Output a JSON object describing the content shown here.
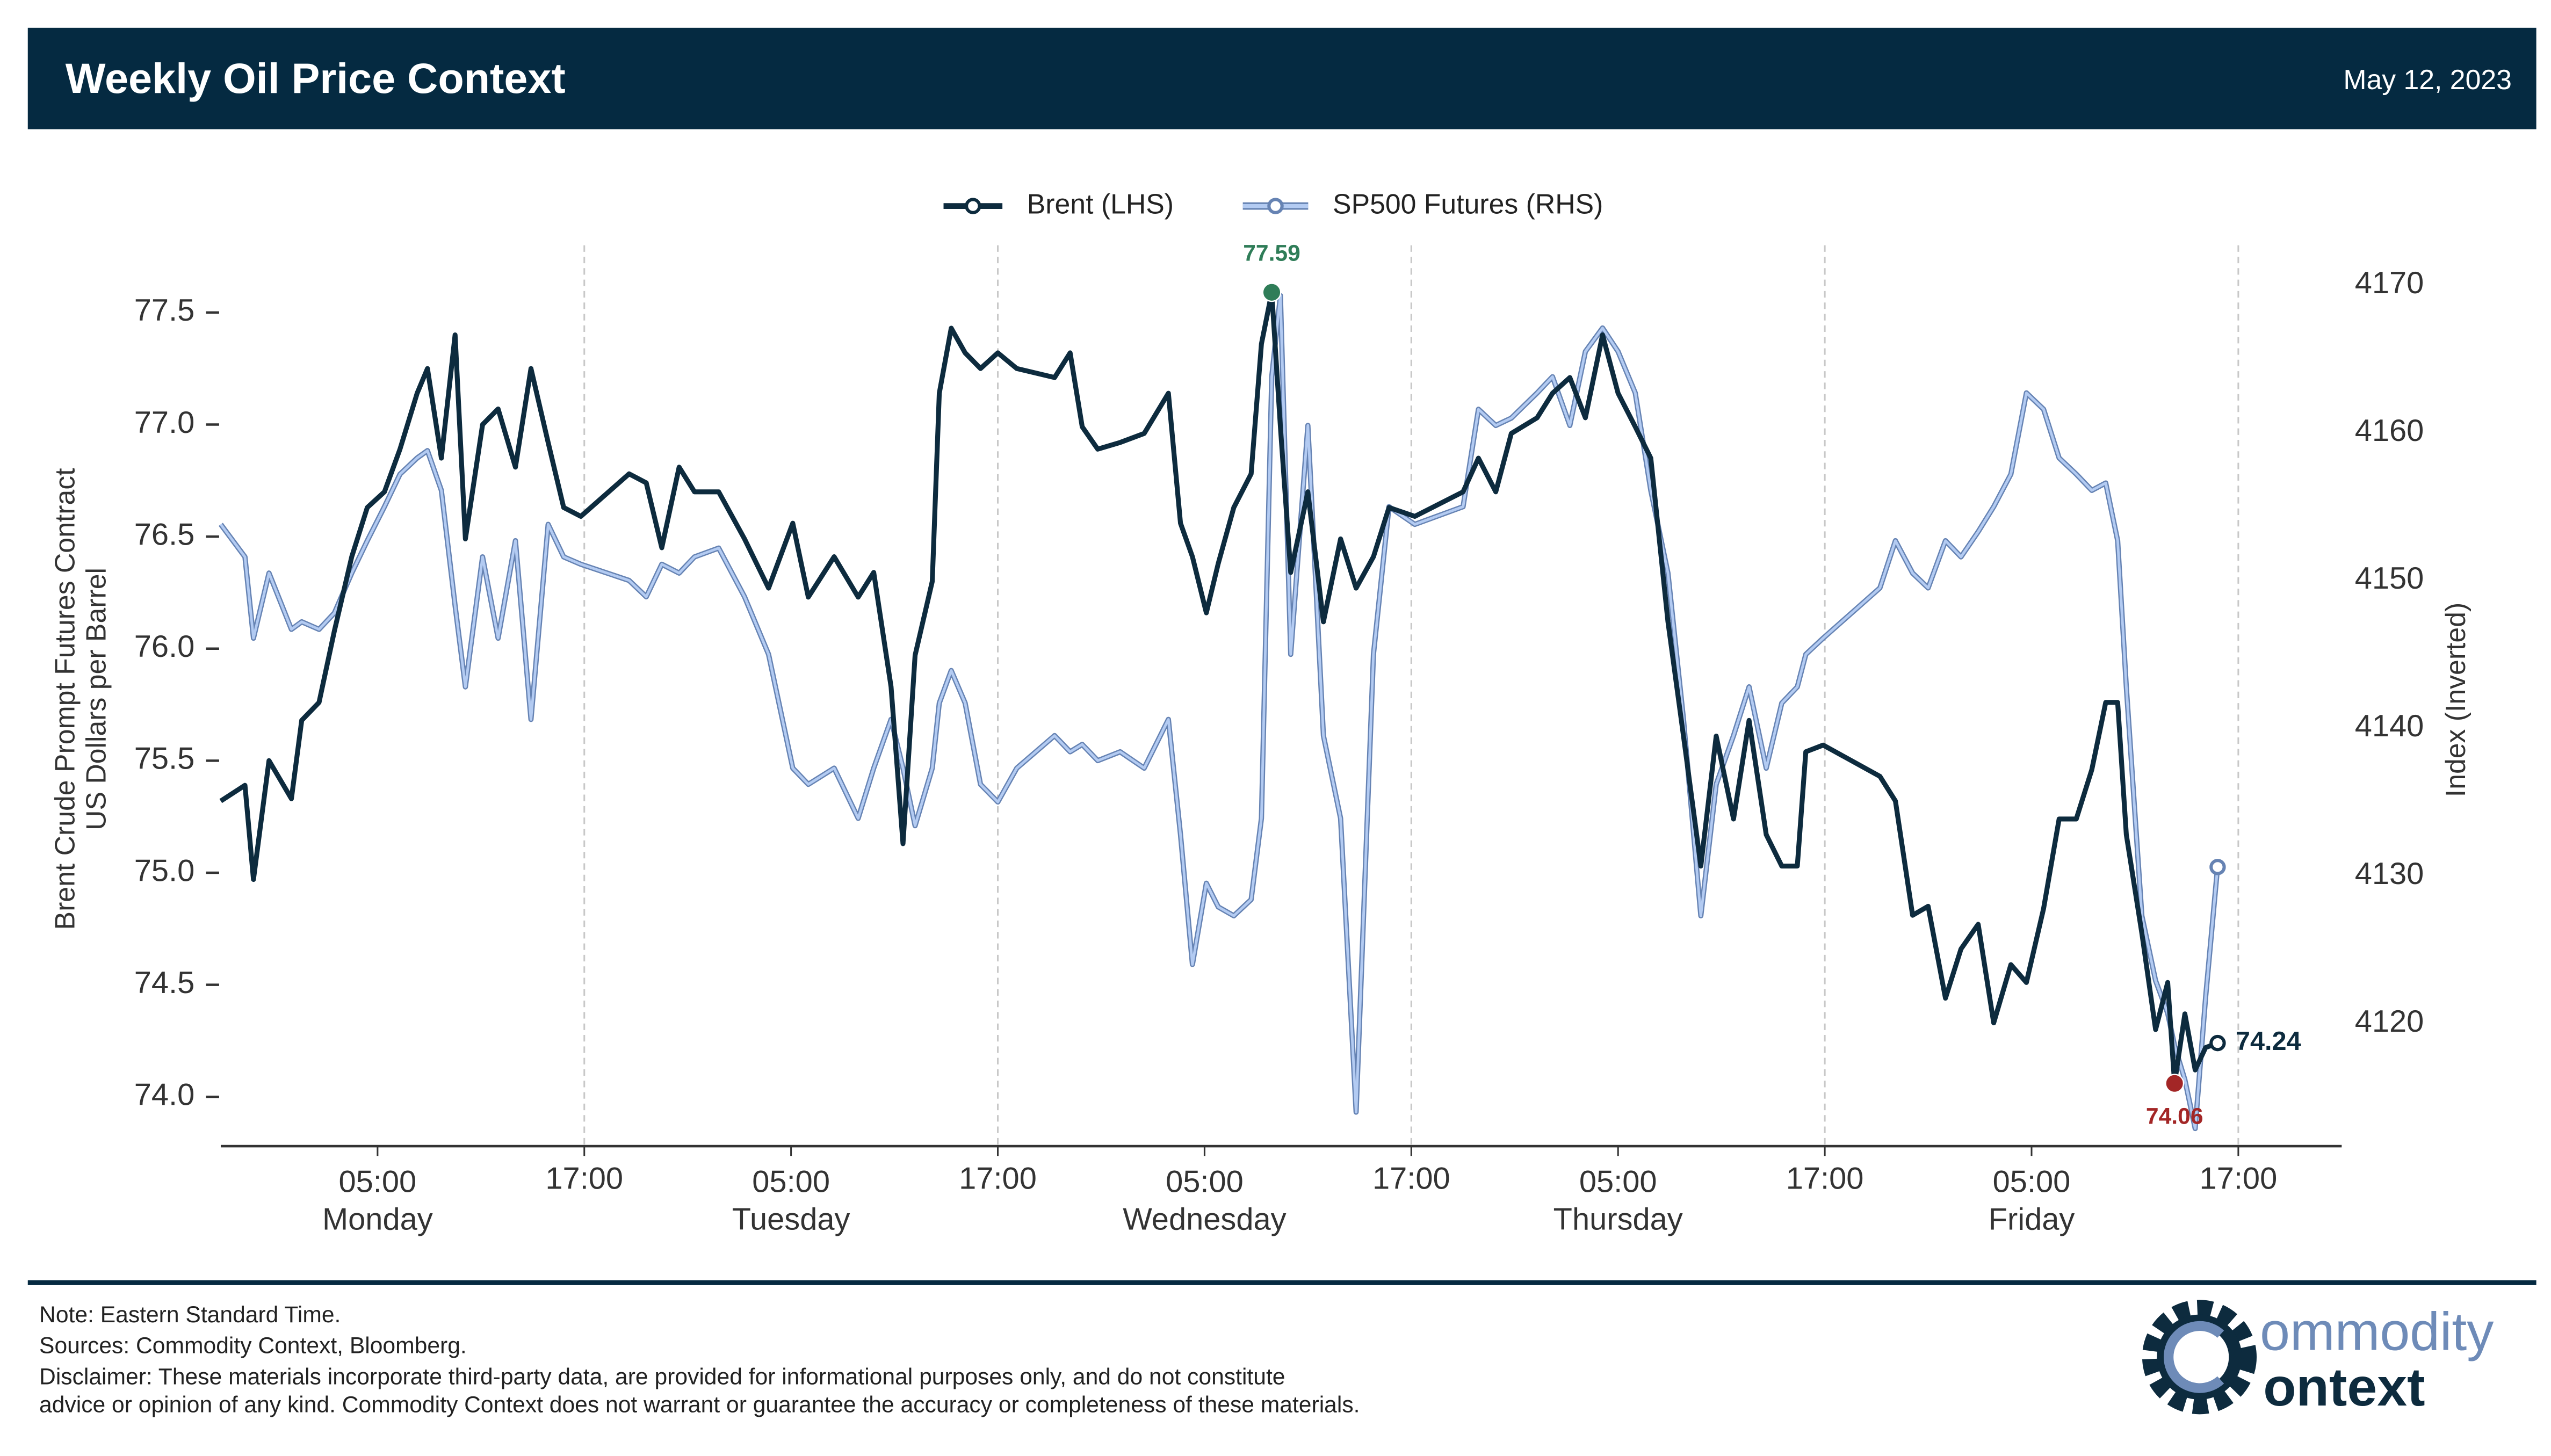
{
  "header": {
    "title": "Weekly Oil Price Context",
    "date": "May 12, 2023"
  },
  "chart_data": {
    "type": "line",
    "x": [
      -4.1,
      -2.7,
      -2.2,
      -1.3,
      0.0,
      0.6,
      1.6,
      2.5,
      3.5,
      4.4,
      5.4,
      6.3,
      7.3,
      7.9,
      8.7,
      9.5,
      10.1,
      11.1,
      12.0,
      13.0,
      13.9,
      14.9,
      15.8,
      16.8,
      19.6,
      20.6,
      21.5,
      22.5,
      23.4,
      24.8,
      26.3,
      27.7,
      29.1,
      30.0,
      31.5,
      32.9,
      33.8,
      34.8,
      35.5,
      36.2,
      37.2,
      37.6,
      38.3,
      39.1,
      40.0,
      41.0,
      42.1,
      44.3,
      45.2,
      45.9,
      46.8,
      48.1,
      49.5,
      50.9,
      51.6,
      52.3,
      53.1,
      53.8,
      54.7,
      55.7,
      56.3,
      56.9,
      57.4,
      58.0,
      59.0,
      59.9,
      60.9,
      61.8,
      62.8,
      63.7,
      65.2,
      68.0,
      68.9,
      69.9,
      70.8,
      72.3,
      73.2,
      74.2,
      75.1,
      76.1,
      77.0,
      78.0,
      78.9,
      79.9,
      80.8,
      81.8,
      82.7,
      83.7,
      84.6,
      85.6,
      86.5,
      87.4,
      87.9,
      88.9,
      92.2,
      93.1,
      94.1,
      95.0,
      96.0,
      96.9,
      97.9,
      98.8,
      99.8,
      100.7,
      101.7,
      102.6,
      103.6,
      104.5,
      105.3,
      106.0,
      106.5,
      107.4,
      108.2,
      108.9,
      109.3,
      109.9,
      110.5,
      111.1,
      111.8
    ],
    "series": [
      {
        "name": "SP500 Futures (RHS)",
        "color": "#b3cbf2",
        "edge": "#6683b3",
        "axis": "y2",
        "values": [
          4153.8,
          4151.6,
          4146.1,
          4150.5,
          4146.7,
          4147.2,
          4146.7,
          4147.8,
          4150.5,
          4152.7,
          4155.0,
          4157.2,
          4158.3,
          4158.8,
          4156.1,
          4148.3,
          4142.8,
          4151.6,
          4146.1,
          4152.7,
          4140.6,
          4153.8,
          4151.6,
          4151.1,
          4150.0,
          4148.9,
          4151.1,
          4150.5,
          4151.6,
          4152.2,
          4148.9,
          4145.0,
          4137.3,
          4136.2,
          4137.3,
          4133.9,
          4137.3,
          4140.6,
          4137.3,
          4133.4,
          4137.3,
          4141.7,
          4143.9,
          4141.7,
          4136.2,
          4135.0,
          4137.3,
          4139.5,
          4138.4,
          4138.9,
          4137.8,
          4138.4,
          4137.3,
          4140.6,
          4132.8,
          4124.0,
          4129.5,
          4127.9,
          4127.3,
          4128.4,
          4133.9,
          4163.8,
          4169.3,
          4145.0,
          4160.5,
          4139.5,
          4133.9,
          4114.0,
          4145.0,
          4155.0,
          4153.8,
          4155.0,
          4161.6,
          4160.5,
          4161.0,
          4162.7,
          4163.8,
          4160.5,
          4165.5,
          4167.1,
          4165.5,
          4162.7,
          4156.1,
          4150.5,
          4140.6,
          4127.3,
          4136.2,
          4139.5,
          4142.8,
          4137.3,
          4141.7,
          4142.8,
          4145.0,
          4146.1,
          4149.5,
          4152.7,
          4150.5,
          4149.5,
          4152.7,
          4151.6,
          4153.3,
          4155.0,
          4157.2,
          4162.7,
          4161.6,
          4158.3,
          4157.2,
          4156.1,
          4156.6,
          4152.7,
          4142.8,
          4127.3,
          4122.9,
          4120.7,
          4118.5,
          4116.2,
          4112.9,
          4121.8,
          4130.6
        ]
      },
      {
        "name": "Brent (LHS)",
        "color": "#0d2b3e",
        "values": [
          75.32,
          75.39,
          74.97,
          75.5,
          75.33,
          75.68,
          75.76,
          76.08,
          76.41,
          76.63,
          76.7,
          76.89,
          77.14,
          77.25,
          76.85,
          77.4,
          76.49,
          77.0,
          77.07,
          76.81,
          77.25,
          76.92,
          76.63,
          76.59,
          76.78,
          76.74,
          76.45,
          76.81,
          76.7,
          76.7,
          76.49,
          76.27,
          76.56,
          76.23,
          76.41,
          76.23,
          76.34,
          75.83,
          75.13,
          75.97,
          76.3,
          77.14,
          77.43,
          77.32,
          77.25,
          77.32,
          77.25,
          77.21,
          77.32,
          76.99,
          76.89,
          76.92,
          76.96,
          77.14,
          76.56,
          76.41,
          76.16,
          76.38,
          76.63,
          76.78,
          77.36,
          77.59,
          76.99,
          76.34,
          76.7,
          76.12,
          76.49,
          76.27,
          76.41,
          76.63,
          76.59,
          76.7,
          76.85,
          76.7,
          76.96,
          77.03,
          77.14,
          77.21,
          77.03,
          77.4,
          77.14,
          76.99,
          76.85,
          76.12,
          75.61,
          75.03,
          75.61,
          75.24,
          75.68,
          75.17,
          75.03,
          75.03,
          75.54,
          75.57,
          75.43,
          75.32,
          74.81,
          74.85,
          74.44,
          74.66,
          74.77,
          74.33,
          74.59,
          74.51,
          74.84,
          75.24,
          75.24,
          75.46,
          75.76,
          75.76,
          75.17,
          74.73,
          74.3,
          74.51,
          74.06,
          74.37,
          74.12,
          74.22,
          74.24
        ]
      }
    ],
    "annotations": [
      {
        "x": 56.9,
        "value": 77.59,
        "color": "#2f7d58",
        "position": "above"
      },
      {
        "x": 109.3,
        "value": 74.06,
        "color": "#a32626",
        "position": "below"
      },
      {
        "x": 111.8,
        "value": 74.24,
        "color": "#0d2b3e",
        "position": "right"
      }
    ],
    "xlim": [
      -4.1,
      119
    ],
    "xticks": [
      {
        "value": 5,
        "label": [
          "05:00",
          "Monday"
        ]
      },
      {
        "value": 17,
        "label": "17:00"
      },
      {
        "value": 29,
        "label": [
          "05:00",
          "Tuesday"
        ]
      },
      {
        "value": 41,
        "label": "17:00"
      },
      {
        "value": 53,
        "label": [
          "05:00",
          "Wednesday"
        ]
      },
      {
        "value": 65,
        "label": "17:00"
      },
      {
        "value": 77,
        "label": [
          "05:00",
          "Thursday"
        ]
      },
      {
        "value": 89,
        "label": "17:00"
      },
      {
        "value": 101,
        "label": [
          "05:00",
          "Friday"
        ]
      },
      {
        "value": 113,
        "label": "17:00"
      }
    ],
    "ylim": [
      73.78,
      77.8
    ],
    "yticks": [
      {
        "value": 74,
        "label": "74.0"
      },
      74.5,
      {
        "value": 75,
        "label": "75.0"
      },
      75.5,
      {
        "value": 76,
        "label": "76.0"
      },
      76.5,
      {
        "value": 77,
        "label": "77.0"
      },
      77.5
    ],
    "y2lim": [
      4111.7,
      4172.7
    ],
    "y2ticks": [
      4120,
      4130,
      4140,
      4150,
      4160,
      4170
    ],
    "ylabel": [
      "Brent Crude Prompt Futures Contract",
      "US Dollars per Barrel"
    ],
    "y2label": "Index (Inverted)",
    "grid": true,
    "legend": "top"
  },
  "footer": {
    "notes": [
      "Note: Eastern Standard Time.",
      "Sources: Commodity Context, Bloomberg.",
      "Disclaimer: These materials incorporate third-party data, are provided for informational purposes only, and do not constitute",
      "advice or opinion of any kind. Commodity Context does not warrant or guarantee the accuracy or completeness of these materials."
    ],
    "logo": [
      "ommodity",
      "ontext"
    ]
  }
}
